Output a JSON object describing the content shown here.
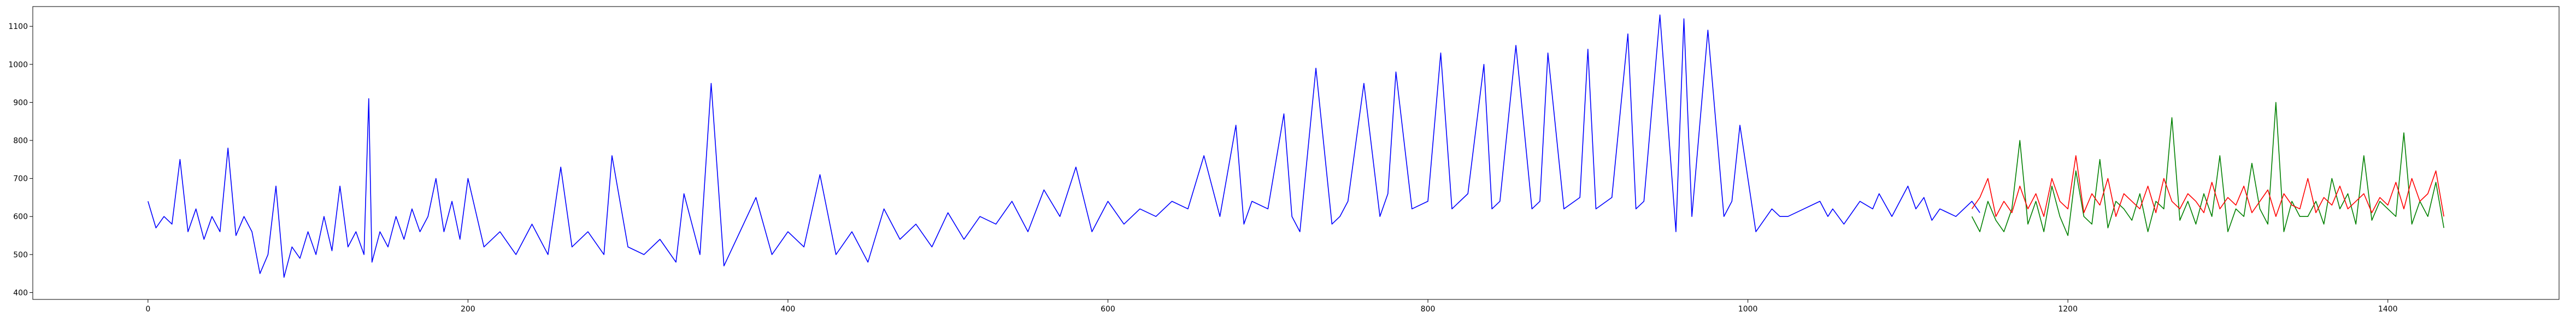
{
  "chart_data": {
    "type": "line",
    "title": "",
    "xlabel": "",
    "ylabel": "",
    "xlim": [
      -72,
      1507
    ],
    "ylim": [
      382,
      1152
    ],
    "grid": false,
    "legend": "none",
    "x_ticks": [
      0,
      200,
      400,
      600,
      800,
      1000,
      1200,
      1400
    ],
    "y_ticks": [
      400,
      500,
      600,
      700,
      800,
      900,
      1000,
      1100
    ],
    "series": [
      {
        "color": "#0000ff",
        "x": [
          0,
          5,
          10,
          15,
          20,
          25,
          30,
          35,
          40,
          45,
          50,
          55,
          60,
          65,
          70,
          75,
          80,
          85,
          90,
          95,
          100,
          105,
          110,
          115,
          120,
          125,
          130,
          135,
          138,
          140,
          145,
          150,
          155,
          160,
          165,
          170,
          175,
          180,
          185,
          190,
          195,
          200,
          210,
          220,
          230,
          240,
          250,
          258,
          265,
          275,
          285,
          290,
          300,
          310,
          320,
          330,
          335,
          345,
          352,
          360,
          370,
          380,
          390,
          400,
          410,
          420,
          430,
          440,
          450,
          460,
          470,
          480,
          490,
          500,
          510,
          520,
          530,
          540,
          550,
          560,
          570,
          580,
          590,
          600,
          610,
          620,
          630,
          640,
          650,
          660,
          670,
          680,
          685,
          690,
          700,
          710,
          715,
          720,
          730,
          740,
          745,
          750,
          760,
          770,
          775,
          780,
          790,
          800,
          808,
          815,
          825,
          835,
          840,
          845,
          855,
          865,
          870,
          875,
          885,
          895,
          900,
          905,
          915,
          925,
          930,
          935,
          945,
          955,
          960,
          965,
          975,
          985,
          990,
          995,
          1005,
          1015,
          1020,
          1025,
          1035,
          1045,
          1050,
          1053,
          1060,
          1070,
          1078,
          1082,
          1090,
          1100,
          1105,
          1110,
          1115,
          1120,
          1130,
          1140,
          1145
        ],
        "y": [
          640,
          570,
          600,
          580,
          750,
          560,
          620,
          540,
          600,
          560,
          780,
          550,
          600,
          560,
          450,
          500,
          680,
          440,
          520,
          490,
          560,
          500,
          600,
          510,
          680,
          520,
          560,
          500,
          910,
          480,
          560,
          520,
          600,
          540,
          620,
          560,
          600,
          700,
          560,
          640,
          540,
          700,
          520,
          560,
          500,
          580,
          500,
          730,
          520,
          560,
          500,
          760,
          520,
          500,
          540,
          480,
          660,
          500,
          950,
          470,
          560,
          650,
          500,
          560,
          520,
          710,
          500,
          560,
          480,
          620,
          540,
          580,
          520,
          610,
          540,
          600,
          580,
          640,
          560,
          670,
          600,
          730,
          560,
          640,
          580,
          620,
          600,
          640,
          620,
          760,
          600,
          840,
          580,
          640,
          620,
          870,
          600,
          560,
          990,
          580,
          600,
          640,
          950,
          600,
          660,
          980,
          620,
          640,
          1030,
          620,
          660,
          1000,
          620,
          640,
          1050,
          620,
          640,
          1030,
          620,
          650,
          1040,
          620,
          650,
          1080,
          620,
          640,
          1130,
          560,
          1120,
          600,
          1090,
          600,
          640,
          840,
          560,
          620,
          600,
          600,
          620,
          640,
          600,
          620,
          580,
          640,
          620,
          660,
          600,
          680,
          620,
          650,
          590,
          620,
          600,
          640,
          610
        ]
      },
      {
        "color": "#008000",
        "x": [
          1140,
          1145,
          1150,
          1155,
          1160,
          1165,
          1170,
          1175,
          1180,
          1185,
          1190,
          1195,
          1200,
          1205,
          1210,
          1215,
          1220,
          1225,
          1230,
          1235,
          1240,
          1245,
          1250,
          1255,
          1260,
          1265,
          1270,
          1275,
          1280,
          1285,
          1290,
          1295,
          1300,
          1305,
          1310,
          1315,
          1320,
          1325,
          1330,
          1335,
          1340,
          1345,
          1350,
          1355,
          1360,
          1365,
          1370,
          1375,
          1380,
          1385,
          1390,
          1395,
          1400,
          1405,
          1410,
          1415,
          1420,
          1425,
          1430,
          1435
        ],
        "y": [
          600,
          560,
          640,
          590,
          560,
          620,
          800,
          580,
          640,
          560,
          680,
          600,
          550,
          720,
          600,
          580,
          750,
          570,
          640,
          620,
          590,
          660,
          560,
          640,
          620,
          860,
          590,
          640,
          580,
          660,
          600,
          760,
          560,
          620,
          600,
          740,
          620,
          580,
          900,
          560,
          640,
          600,
          600,
          640,
          580,
          700,
          620,
          660,
          580,
          760,
          590,
          640,
          620,
          600,
          820,
          580,
          640,
          600,
          690,
          570
        ]
      },
      {
        "color": "#ff0000",
        "x": [
          1140,
          1145,
          1150,
          1155,
          1160,
          1165,
          1170,
          1175,
          1180,
          1185,
          1190,
          1195,
          1200,
          1205,
          1210,
          1215,
          1220,
          1225,
          1230,
          1235,
          1240,
          1245,
          1250,
          1255,
          1260,
          1265,
          1270,
          1275,
          1280,
          1285,
          1290,
          1295,
          1300,
          1305,
          1310,
          1315,
          1320,
          1325,
          1330,
          1335,
          1340,
          1345,
          1350,
          1355,
          1360,
          1365,
          1370,
          1375,
          1380,
          1385,
          1390,
          1395,
          1400,
          1405,
          1410,
          1415,
          1420,
          1425,
          1430,
          1435
        ],
        "y": [
          620,
          650,
          700,
          600,
          640,
          610,
          680,
          620,
          660,
          600,
          700,
          640,
          620,
          760,
          610,
          660,
          630,
          700,
          600,
          660,
          640,
          620,
          680,
          610,
          700,
          640,
          620,
          660,
          640,
          610,
          690,
          620,
          650,
          630,
          680,
          610,
          640,
          670,
          600,
          660,
          630,
          620,
          700,
          610,
          650,
          630,
          680,
          620,
          640,
          660,
          610,
          650,
          630,
          690,
          620,
          700,
          640,
          660,
          720,
          600
        ]
      }
    ]
  }
}
